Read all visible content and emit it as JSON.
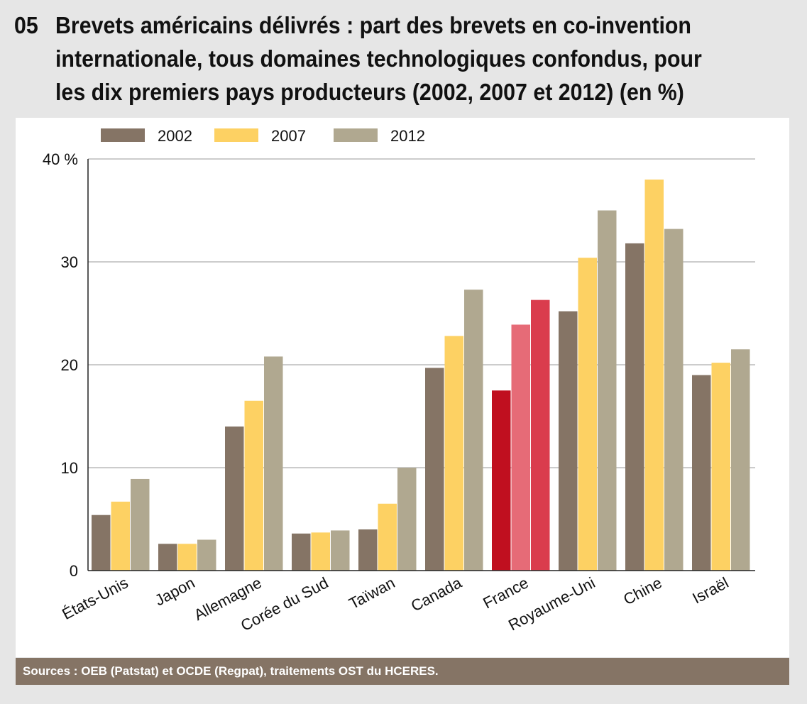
{
  "header": {
    "number": "05",
    "title": "Brevets américains délivrés : part des brevets en co-invention internationale, tous domaines technologiques confondus, pour les dix premiers pays producteurs (2002, 2007 et 2012) (en %)"
  },
  "source": "Sources : OEB (Patstat) et OCDE (Regpat), traitements OST du HCERES.",
  "chart_data": {
    "type": "bar",
    "title": "Brevets américains délivrés : part des brevets en co-invention internationale, tous domaines technologiques confondus, pour les dix premiers pays producteurs (2002, 2007 et 2012) (en %)",
    "xlabel": "",
    "ylabel": "",
    "ylim": [
      0,
      40
    ],
    "yticks": [
      0,
      10,
      20,
      30,
      40
    ],
    "ytick_labels": [
      "0",
      "10",
      "20",
      "30",
      "40 %"
    ],
    "grid": true,
    "legend_position": "top-left",
    "categories": [
      "États-Unis",
      "Japon",
      "Allemagne",
      "Corée du Sud",
      "Taïwan",
      "Canada",
      "France",
      "Royaume-Uni",
      "Chine",
      "Israël"
    ],
    "series": [
      {
        "name": "2002",
        "color": "#857465",
        "values": [
          5.4,
          2.6,
          14.0,
          3.6,
          4.0,
          19.7,
          17.5,
          25.2,
          31.8,
          19.0
        ]
      },
      {
        "name": "2007",
        "color": "#fdd163",
        "values": [
          6.7,
          2.6,
          16.5,
          3.7,
          6.5,
          22.8,
          23.9,
          30.4,
          38.0,
          20.2
        ]
      },
      {
        "name": "2012",
        "color": "#b0a890",
        "values": [
          8.9,
          3.0,
          20.8,
          3.9,
          10.0,
          27.3,
          26.3,
          35.0,
          33.2,
          21.5
        ]
      }
    ],
    "highlight": {
      "category": "France",
      "colors": [
        "#c00f1f",
        "#e66b77",
        "#da3c4d"
      ]
    }
  }
}
